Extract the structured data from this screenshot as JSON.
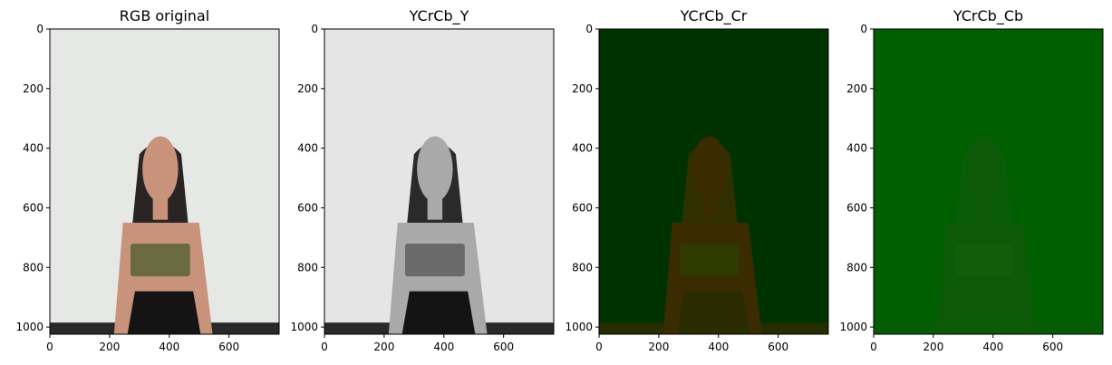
{
  "chart_data": [
    {
      "type": "image",
      "title": "RGB original",
      "xlim": [
        0,
        768
      ],
      "ylim": [
        1024,
        0
      ],
      "xticks": [
        0,
        200,
        400,
        600
      ],
      "yticks": [
        0,
        200,
        400,
        600,
        800,
        1000
      ],
      "background_color": "#e6e8e6",
      "figure_color": "#2a2524",
      "top_color": "#6b6a40",
      "bottom_color": "#141414",
      "skin_color": "#c8937a"
    },
    {
      "type": "image",
      "title": "YCrCb_Y",
      "xlim": [
        0,
        768
      ],
      "ylim": [
        1024,
        0
      ],
      "xticks": [
        0,
        200,
        400,
        600
      ],
      "yticks": [
        0,
        200,
        400,
        600,
        800,
        1000
      ],
      "background_color": "#e5e5e5",
      "figure_color": "#2a2a2a",
      "top_color": "#6a6a6a",
      "bottom_color": "#141414",
      "skin_color": "#a9a9a9"
    },
    {
      "type": "image",
      "title": "YCrCb_Cr",
      "xlim": [
        0,
        768
      ],
      "ylim": [
        1024,
        0
      ],
      "xticks": [
        0,
        200,
        400,
        600
      ],
      "yticks": [
        0,
        200,
        400,
        600,
        800,
        1000
      ],
      "background_color": "#003200",
      "figure_color": "#2f2f00",
      "top_color": "#2e3a00",
      "bottom_color": "#2a2c00",
      "skin_color": "#3a2c00"
    },
    {
      "type": "image",
      "title": "YCrCb_Cb",
      "xlim": [
        0,
        768
      ],
      "ylim": [
        1024,
        0
      ],
      "xticks": [
        0,
        200,
        400,
        600
      ],
      "yticks": [
        0,
        200,
        400,
        600,
        800,
        1000
      ],
      "background_color": "#006000",
      "figure_color": "#0b5c08",
      "top_color": "#0e5e0a",
      "bottom_color": "#0a5a08",
      "skin_color": "#0c5a08"
    }
  ]
}
